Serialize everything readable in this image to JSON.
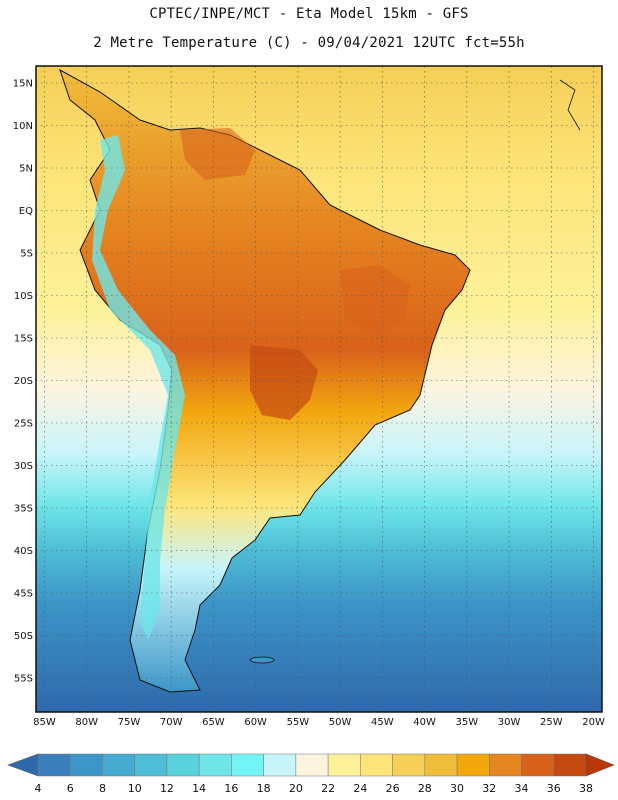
{
  "header": {
    "line1": "CPTEC/INPE/MCT -  Eta Model 15km - GFS",
    "line2": "2 Metre Temperature (C) - 09/04/2021 12UTC fct=55h"
  },
  "axes": {
    "lat_labels": [
      "15N",
      "10N",
      "5N",
      "EQ",
      "5S",
      "10S",
      "15S",
      "20S",
      "25S",
      "30S",
      "35S",
      "40S",
      "45S",
      "50S",
      "55S"
    ],
    "lon_labels": [
      "85W",
      "80W",
      "75W",
      "70W",
      "65W",
      "60W",
      "55W",
      "50W",
      "45W",
      "40W",
      "35W",
      "30W",
      "25W",
      "20W"
    ],
    "lat_range": [
      17,
      -59
    ],
    "lon_range": [
      -86,
      -19
    ]
  },
  "colorbar": {
    "ticks": [
      "4",
      "6",
      "8",
      "10",
      "12",
      "14",
      "16",
      "18",
      "20",
      "22",
      "24",
      "26",
      "28",
      "30",
      "32",
      "34",
      "36",
      "38"
    ],
    "colors": [
      "#2f69ac",
      "#3a7fbc",
      "#3c96c8",
      "#45aad0",
      "#4ebdd6",
      "#5ad2dc",
      "#6ee6e8",
      "#73f5f5",
      "#c8f5fa",
      "#fdf4e0",
      "#fdf29a",
      "#fde57a",
      "#f5cf56",
      "#f0bd3b",
      "#f2a70f",
      "#e58520",
      "#d9621a",
      "#c44a12",
      "#b83808"
    ]
  },
  "map": {
    "ocean_warm": "#fbe587",
    "ocean_mid": "#fdf4e0",
    "ocean_cold": "#5ad2dc",
    "ocean_deep": "#2f69ac",
    "land_hot": "#e58520",
    "land_warm": "#f0bd3b",
    "border_color": "#111111"
  }
}
